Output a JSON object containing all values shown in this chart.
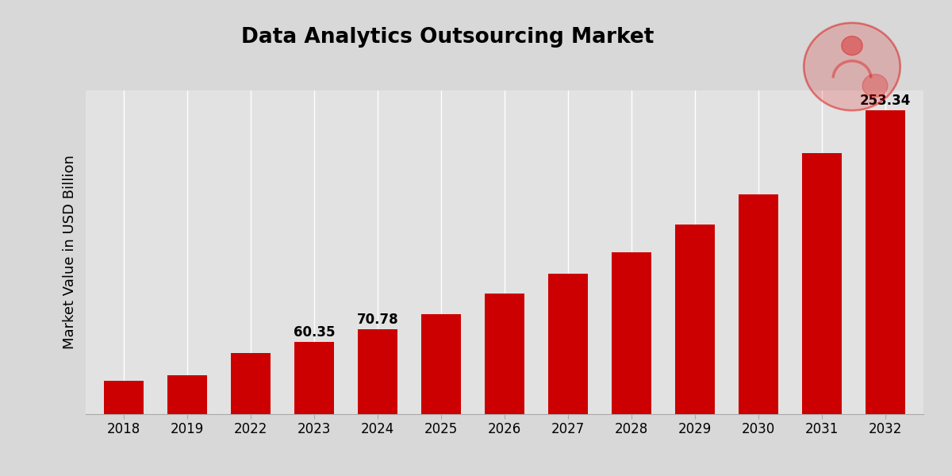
{
  "title": "Data Analytics Outsourcing Market",
  "ylabel": "Market Value in USD Billion",
  "categories": [
    "2018",
    "2019",
    "2022",
    "2023",
    "2024",
    "2025",
    "2026",
    "2027",
    "2028",
    "2029",
    "2030",
    "2031",
    "2032"
  ],
  "values": [
    28.0,
    32.5,
    51.0,
    60.35,
    70.78,
    83.5,
    100.5,
    117.0,
    135.0,
    158.0,
    183.0,
    218.0,
    253.34
  ],
  "bar_color": "#cc0000",
  "background_color": "#d8d8d8",
  "plot_bg_color": "#e2e2e2",
  "title_fontsize": 19,
  "ylabel_fontsize": 13,
  "tick_fontsize": 12,
  "annotate_indices": [
    3,
    4,
    12
  ],
  "annotate_labels": [
    "60.35",
    "70.78",
    "253.34"
  ],
  "ylim": [
    0,
    270
  ],
  "bar_width": 0.62,
  "grid_color": "#ffffff",
  "bottom_bar_color": "#cc0000",
  "bottom_bar_height": 0.045
}
